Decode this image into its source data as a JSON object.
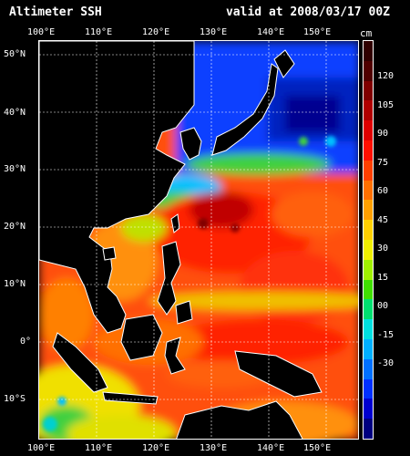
{
  "title": {
    "left": "Altimeter SSH",
    "right": "valid at 2008/03/17 00Z"
  },
  "axes": {
    "lon_top": [
      "100°E",
      "110°E",
      "120°E",
      "130°E",
      "140°E",
      "150°E"
    ],
    "lon_bottom": [
      "100°E",
      "110°E",
      "120°E",
      "130°E",
      "140°E",
      "150°E"
    ],
    "lat": [
      "50°N",
      "40°N",
      "30°N",
      "20°N",
      "10°N",
      "0°",
      "10°S"
    ]
  },
  "colorbar": {
    "unit": "cm",
    "labels": [
      "120",
      "105",
      "90",
      "75",
      "60",
      "45",
      "30",
      "15",
      "00",
      "-15",
      "-30"
    ],
    "colors": [
      "#000080",
      "#0000d0",
      "#0030ff",
      "#0070ff",
      "#00b0ff",
      "#00e0e0",
      "#00e070",
      "#40e000",
      "#a0f000",
      "#f0f000",
      "#ffd000",
      "#ffa000",
      "#ff7000",
      "#ff4000",
      "#ff1000",
      "#e00000",
      "#b00000",
      "#800000",
      "#500000",
      "#300000"
    ]
  },
  "map_colors": {
    "land": "#000000",
    "coast": "#ffffff",
    "cold": "#1030ff",
    "deep_cold": "#000090",
    "cyan": "#00c0ff",
    "green": "#40d040",
    "yellow": "#f0e000",
    "orange": "#ff8000",
    "red": "#ff3010",
    "darkred": "#c00000"
  }
}
